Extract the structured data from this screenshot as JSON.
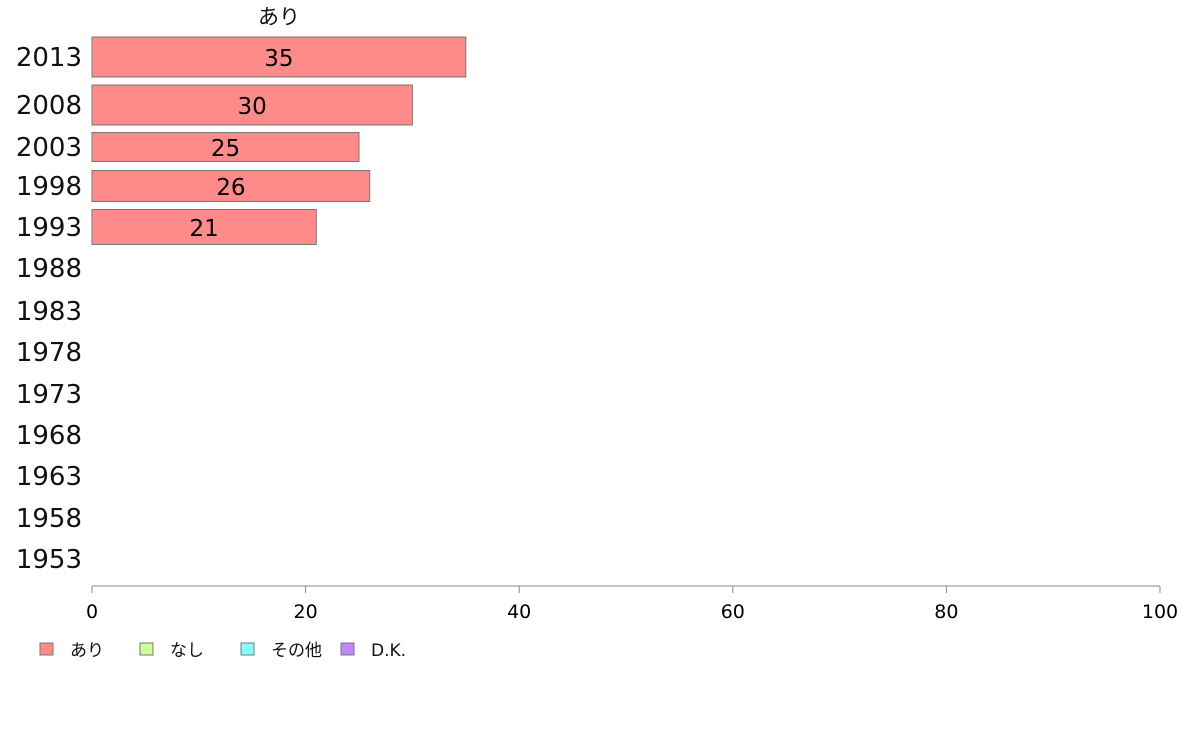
{
  "chart_data": {
    "type": "bar",
    "orientation": "horizontal",
    "categories": [
      "2013",
      "2008",
      "2003",
      "1998",
      "1993",
      "1988",
      "1983",
      "1978",
      "1973",
      "1968",
      "1963",
      "1958",
      "1953"
    ],
    "series": [
      {
        "name": "あり",
        "color": "#ff8a8a",
        "values": [
          35,
          30,
          25,
          26,
          21,
          null,
          null,
          null,
          null,
          null,
          null,
          null,
          null
        ]
      }
    ],
    "value_labels": [
      "35",
      "30",
      "25",
      "26",
      "21"
    ],
    "xlim": [
      0,
      100
    ],
    "xticks": [
      0,
      20,
      40,
      60,
      80,
      100
    ],
    "grid": false,
    "legend": {
      "placement": "bottom-left",
      "items": [
        {
          "label": "あり",
          "color": "#ff8a8a"
        },
        {
          "label": "なし",
          "color": "#ccff99"
        },
        {
          "label": "その他",
          "color": "#88ffff"
        },
        {
          "label": "D.K.",
          "color": "#bb88ff"
        }
      ]
    }
  }
}
